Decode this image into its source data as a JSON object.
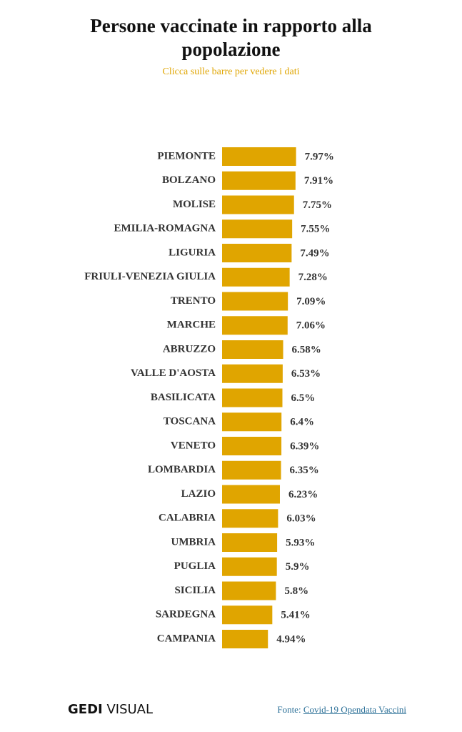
{
  "chart_data": {
    "type": "bar",
    "orientation": "horizontal",
    "title": "Persone vaccinate in rapporto alla popolazione",
    "subtitle": "Clicca sulle barre per vedere i dati",
    "categories": [
      "PIEMONTE",
      "BOLZANO",
      "MOLISE",
      "EMILIA-ROMAGNA",
      "LIGURIA",
      "FRIULI-VENEZIA GIULIA",
      "TRENTO",
      "MARCHE",
      "ABRUZZO",
      "VALLE D'AOSTA",
      "BASILICATA",
      "TOSCANA",
      "VENETO",
      "LOMBARDIA",
      "LAZIO",
      "CALABRIA",
      "UMBRIA",
      "PUGLIA",
      "SICILIA",
      "SARDEGNA",
      "CAMPANIA"
    ],
    "values": [
      7.97,
      7.91,
      7.75,
      7.55,
      7.49,
      7.28,
      7.09,
      7.06,
      6.58,
      6.53,
      6.5,
      6.4,
      6.39,
      6.35,
      6.23,
      6.03,
      5.93,
      5.9,
      5.8,
      5.41,
      4.94
    ],
    "value_labels": [
      "7.97%",
      "7.91%",
      "7.75%",
      "7.55%",
      "7.49%",
      "7.28%",
      "7.09%",
      "7.06%",
      "6.58%",
      "6.53%",
      "6.5%",
      "6.4%",
      "6.39%",
      "6.35%",
      "6.23%",
      "6.03%",
      "5.93%",
      "5.9%",
      "5.8%",
      "5.41%",
      "4.94%"
    ],
    "color": "#e0a500"
  },
  "footer": {
    "logo_bold": "GEDI",
    "logo_light": "VISUAL",
    "source_label": "Fonte:",
    "source_link": "Covid-19 Opendata Vaccini"
  }
}
